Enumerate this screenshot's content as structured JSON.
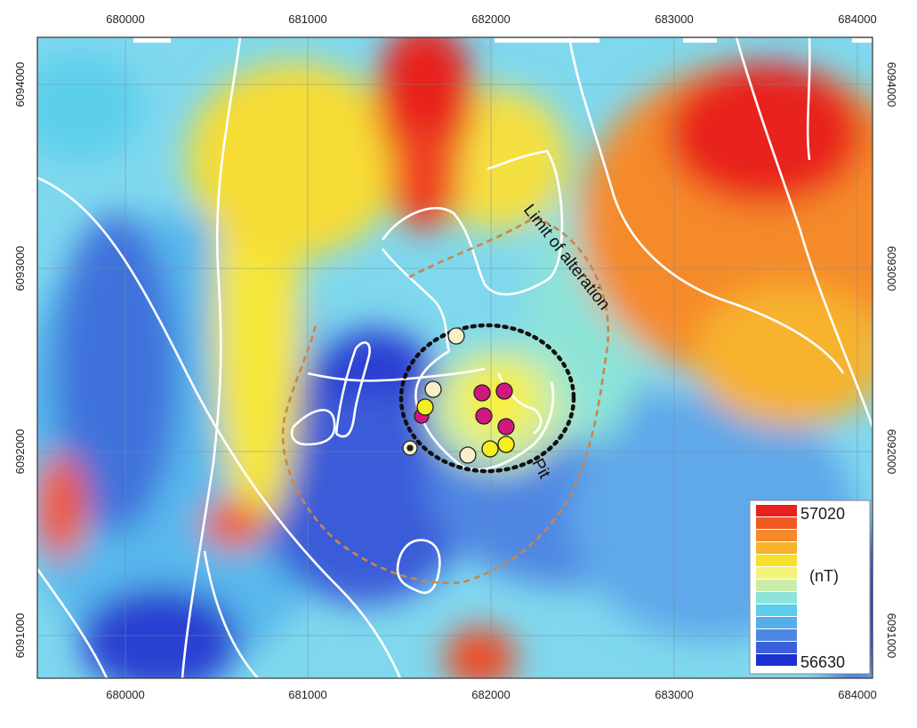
{
  "map": {
    "x_ticks": [
      "680000",
      "681000",
      "682000",
      "683000",
      "684000"
    ],
    "y_ticks": [
      "6094000",
      "6093000",
      "6092000",
      "6091000"
    ],
    "labels": {
      "limit": "Limit of alteration",
      "pit": "Pit"
    },
    "legend": {
      "max": "57020",
      "unit": "(nT)",
      "min": "56630",
      "colors": [
        "#e8201e",
        "#ef5a22",
        "#f58a2a",
        "#f7b22e",
        "#f6e02c",
        "#f3f37a",
        "#c9eda8",
        "#8de3d8",
        "#5cccec",
        "#55aeea",
        "#4f86e2",
        "#3b5fd8",
        "#1c2fd0"
      ]
    },
    "points": {
      "magenta": "#d0187e",
      "yellow": "#f4ee22",
      "cream": "#f6f0c8"
    }
  }
}
